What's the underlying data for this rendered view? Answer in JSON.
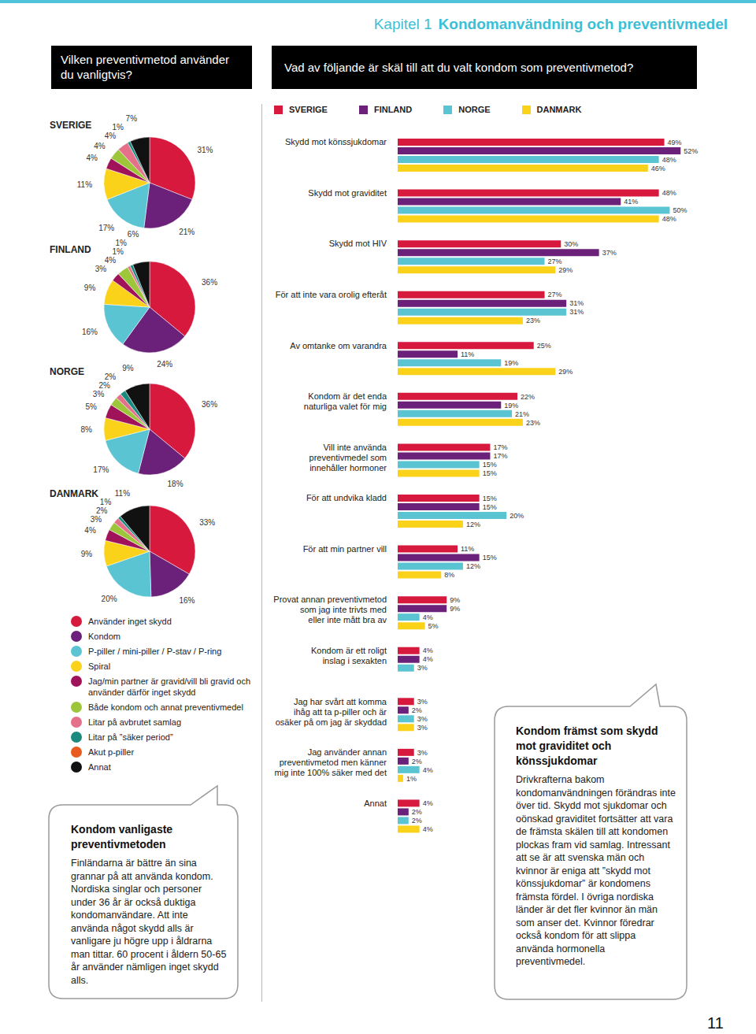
{
  "header": {
    "chapter": "Kapitel 1",
    "title": "Kondomanvändning och preventivmedel"
  },
  "page_number": "11",
  "pie_panel": {
    "title": "Vilken preventivmetod använder du vanligtvis?"
  },
  "chart_data": [
    {
      "type": "pie",
      "title": "SVERIGE",
      "data_labels": true,
      "categories": [
        "Använder inget skydd",
        "Kondom",
        "P-piller / mini-piller / P-stav / P-ring",
        "Spiral",
        "Jag/min partner är gravid/vill bli gravid och använder därför inget skydd",
        "Både kondom och annat preventivmedel",
        "Litar på avbrutet samlag",
        "Litar på ”säker period”",
        "Akut p-piller",
        "Annat"
      ],
      "values": [
        31,
        21,
        17,
        11,
        4,
        4,
        4,
        1,
        0,
        7
      ],
      "value_labels": [
        "31%",
        "21%",
        "17%",
        "11%",
        "4%",
        "4%",
        "4%",
        "1%",
        null,
        "7%"
      ],
      "colors": [
        "#d7193e",
        "#6b2079",
        "#5bc4d3",
        "#fbd21a",
        "#a0135a",
        "#9dc63b",
        "#e4708a",
        "#1b8a7e",
        "#e85a1e",
        "#111111"
      ]
    },
    {
      "type": "pie",
      "title": "FINLAND",
      "data_labels": true,
      "categories": [
        "Använder inget skydd",
        "Kondom",
        "P-piller / mini-piller / P-stav / P-ring",
        "Spiral",
        "Jag/min partner är gravid/vill bli gravid och använder därför inget skydd",
        "Både kondom och annat preventivmedel",
        "Litar på avbrutet samlag",
        "Litar på ”säker period”",
        "Akut p-piller",
        "Annat"
      ],
      "values": [
        36,
        24,
        16,
        9,
        3,
        4,
        1,
        1,
        0,
        6
      ],
      "value_labels": [
        "36%",
        "24%",
        "16%",
        "9%",
        "3%",
        "4%",
        "1%",
        "1%",
        null,
        "6%"
      ],
      "colors": [
        "#d7193e",
        "#6b2079",
        "#5bc4d3",
        "#fbd21a",
        "#a0135a",
        "#9dc63b",
        "#e4708a",
        "#1b8a7e",
        "#e85a1e",
        "#111111"
      ]
    },
    {
      "type": "pie",
      "title": "NORGE",
      "data_labels": true,
      "categories": [
        "Använder inget skydd",
        "Kondom",
        "P-piller / mini-piller / P-stav / P-ring",
        "Spiral",
        "Jag/min partner är gravid/vill bli gravid och använder därför inget skydd",
        "Både kondom och annat preventivmedel",
        "Litar på avbrutet samlag",
        "Litar på ”säker period”",
        "Akut p-piller",
        "Annat"
      ],
      "values": [
        36,
        18,
        17,
        8,
        5,
        3,
        2,
        2,
        0,
        9
      ],
      "value_labels": [
        "36%",
        "18%",
        "17%",
        "8%",
        "5%",
        "3%",
        "2%",
        "2%",
        null,
        "9%"
      ],
      "colors": [
        "#d7193e",
        "#6b2079",
        "#5bc4d3",
        "#fbd21a",
        "#a0135a",
        "#9dc63b",
        "#e4708a",
        "#1b8a7e",
        "#e85a1e",
        "#111111"
      ]
    },
    {
      "type": "pie",
      "title": "DANMARK",
      "data_labels": true,
      "categories": [
        "Använder inget skydd",
        "Kondom",
        "P-piller / mini-piller / P-stav / P-ring",
        "Spiral",
        "Jag/min partner är gravid/vill bli gravid och använder därför inget skydd",
        "Både kondom och annat preventivmedel",
        "Litar på avbrutet samlag",
        "Litar på ”säker period”",
        "Akut p-piller",
        "Annat"
      ],
      "values": [
        33,
        16,
        20,
        9,
        4,
        3,
        2,
        1,
        0,
        11
      ],
      "value_labels": [
        "33%",
        "16%",
        "20%",
        "9%",
        "4%",
        "3%",
        "2%",
        "1%",
        null,
        "11%"
      ],
      "colors": [
        "#d7193e",
        "#6b2079",
        "#5bc4d3",
        "#fbd21a",
        "#a0135a",
        "#9dc63b",
        "#e4708a",
        "#1b8a7e",
        "#e85a1e",
        "#111111"
      ]
    },
    {
      "type": "bar",
      "orientation": "horizontal",
      "title": "Vad av följande är skäl till att du valt kondom som preventivmetod?",
      "data_labels": true,
      "tick_labels": false,
      "legend": "top",
      "xlim": [
        0,
        55
      ],
      "categories": [
        "Skydd mot könssjukdomar",
        "Skydd mot graviditet",
        "Skydd mot HIV",
        "För att inte vara orolig efteråt",
        "Av omtanke om varandra",
        "Kondom är det enda\nnaturliga valet för mig",
        "Vill inte använda\npreventivmedel som\ninnehåller hormoner",
        "För att undvika kladd",
        "För att min partner vill",
        "Provat annan preventivmetod\nsom jag inte trivts med\neller inte mått bra av",
        "Kondom är ett roligt\ninslag i sexakten",
        "Jag har svårt att komma\nihåg att ta p-piller och är\nosäker på om jag är skyddad",
        "Jag använder annan\npreventivmetod men känner\nmig inte 100% säker med det",
        "Annat"
      ],
      "series": [
        {
          "name": "SVERIGE",
          "color": "#d7193e",
          "values": [
            49,
            48,
            30,
            27,
            25,
            22,
            17,
            15,
            11,
            9,
            4,
            3,
            3,
            4
          ],
          "value_labels": [
            "49%",
            "48%",
            "30%",
            "27%",
            "25%",
            "22%",
            "17%",
            "15%",
            "11%",
            "9%",
            "4%",
            "3%",
            "3%",
            "4%"
          ]
        },
        {
          "name": "FINLAND",
          "color": "#6b2079",
          "values": [
            52,
            41,
            37,
            31,
            11,
            19,
            17,
            15,
            15,
            9,
            4,
            2,
            2,
            2
          ],
          "value_labels": [
            "52%",
            "41%",
            "37%",
            "31%",
            "11%",
            "19%",
            "17%",
            "15%",
            "15%",
            "9%",
            "4%",
            "2%",
            "2%",
            "2%"
          ]
        },
        {
          "name": "NORGE",
          "color": "#5bc4d3",
          "values": [
            48,
            50,
            27,
            31,
            19,
            21,
            15,
            20,
            12,
            4,
            3,
            3,
            4,
            2
          ],
          "value_labels": [
            "48%",
            "50%",
            "27%",
            "31%",
            "19%",
            "21%",
            "15%",
            "20%",
            "12%",
            "4%",
            "3%",
            "3%",
            "4%",
            "2%"
          ]
        },
        {
          "name": "DANMARK",
          "color": "#fbd21a",
          "values": [
            46,
            48,
            29,
            23,
            29,
            23,
            15,
            12,
            8,
            5,
            0,
            3,
            1,
            4
          ],
          "value_labels": [
            "46%",
            "48%",
            "29%",
            "23%",
            "29%",
            "23%",
            "15%",
            "12%",
            "8%",
            "5%",
            "0%",
            "3%",
            "1%",
            "4%"
          ]
        }
      ]
    }
  ],
  "notes": [
    {
      "title": "Kondom vanligaste preventivmetoden",
      "text": "Finländarna är bättre än sina grannar på att använda kondom. Nordiska singlar och personer under 36 år är också duktiga kondomanvändare. Att inte använda något skydd alls är vanligare ju högre upp i åldrarna man tittar. 60 procent i åldern 50-65 år använder nämligen inget skydd alls."
    },
    {
      "title": "Kondom främst som skydd mot graviditet och könssjukdomar",
      "text": "Drivkrafterna bakom kondomanvändningen förändras inte över tid. Skydd mot sjukdomar och oönskad graviditet fortsätter att vara de främsta skälen till att kondomen plockas fram vid samlag. Intressant att se är att svenska män och kvinnor är eniga att ”skydd mot könssjukdomar” är kondomens främsta fördel. I övriga nordiska länder är det fler kvinnor än män som anser det. Kvinnor föredrar också kondom för att slippa använda hormonella preventivmedel."
    }
  ]
}
